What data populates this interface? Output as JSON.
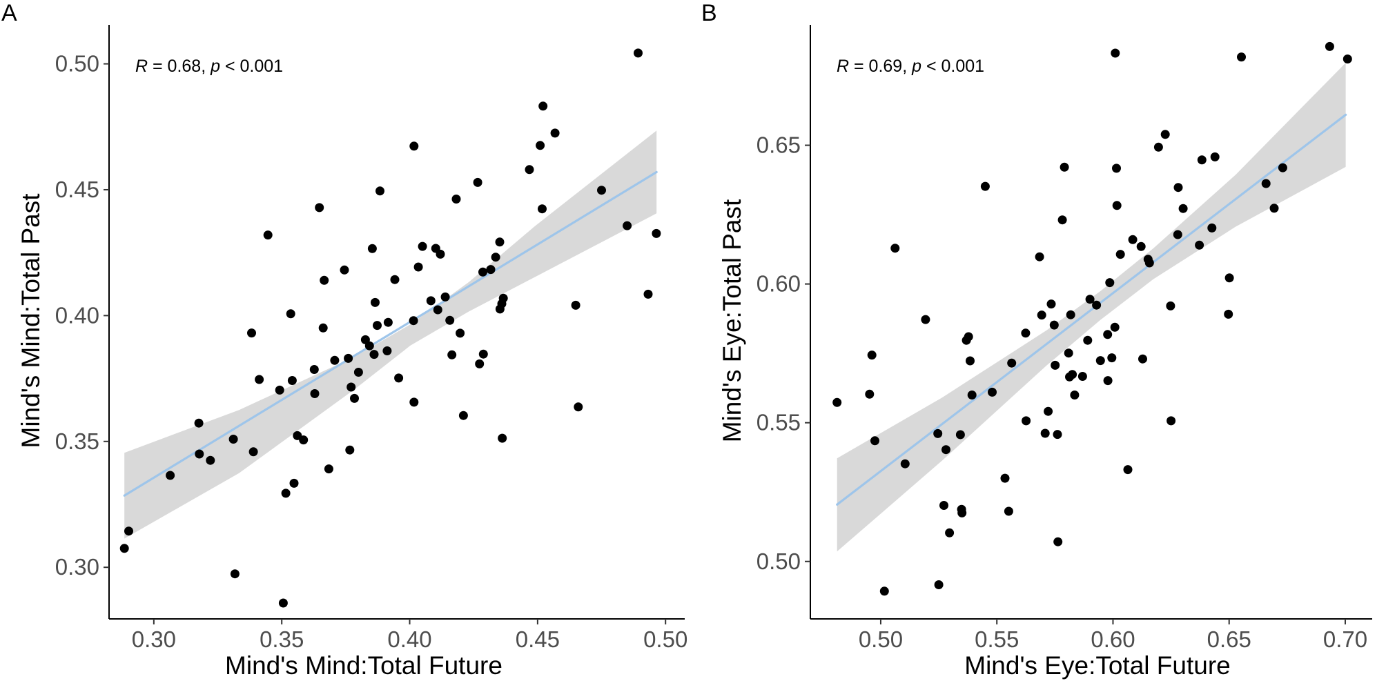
{
  "chart_data": [
    {
      "type": "scatter",
      "panel_label": "A",
      "annotation": {
        "r_label": "R",
        "r_text": " = 0.68, ",
        "p_label": "p",
        "p_text": " < 0.001"
      },
      "xlabel": "Mind's Mind:Total Future",
      "ylabel": "Mind's Mind:Total Past",
      "xlim": [
        0.2825,
        0.5075
      ],
      "ylim": [
        0.2795,
        0.5155
      ],
      "xticks": [
        {
          "v": 0.3,
          "label": "0.30"
        },
        {
          "v": 0.35,
          "label": "0.35"
        },
        {
          "v": 0.4,
          "label": "0.40"
        },
        {
          "v": 0.45,
          "label": "0.45"
        },
        {
          "v": 0.5,
          "label": "0.50"
        }
      ],
      "yticks": [
        {
          "v": 0.3,
          "label": "0.30"
        },
        {
          "v": 0.35,
          "label": "0.35"
        },
        {
          "v": 0.4,
          "label": "0.40"
        },
        {
          "v": 0.45,
          "label": "0.45"
        },
        {
          "v": 0.5,
          "label": "0.50"
        }
      ],
      "fit": {
        "x0": 0.2885,
        "y0": 0.3285,
        "x1": 0.4965,
        "y1": 0.457,
        "color": "#9ec5ea"
      },
      "ci_band": {
        "upper": [
          [
            0.2885,
            0.3455
          ],
          [
            0.3333,
            0.3625
          ],
          [
            0.3782,
            0.3835
          ],
          [
            0.4003,
            0.3965
          ],
          [
            0.4231,
            0.4133
          ],
          [
            0.4489,
            0.4355
          ],
          [
            0.4965,
            0.4735
          ]
        ],
        "lower": [
          [
            0.2885,
            0.3114
          ],
          [
            0.3333,
            0.3374
          ],
          [
            0.3782,
            0.3705
          ],
          [
            0.4003,
            0.3881
          ],
          [
            0.4231,
            0.4016
          ],
          [
            0.4489,
            0.4153
          ],
          [
            0.4965,
            0.4406
          ]
        ],
        "color": "#d9d9d9"
      },
      "x": [
        0.2885,
        0.2902,
        0.3064,
        0.3176,
        0.3178,
        0.3221,
        0.3311,
        0.3317,
        0.3382,
        0.3389,
        0.3412,
        0.3446,
        0.3492,
        0.3506,
        0.3516,
        0.3535,
        0.3541,
        0.3548,
        0.3561,
        0.3585,
        0.3627,
        0.3629,
        0.3647,
        0.3662,
        0.3666,
        0.3684,
        0.3707,
        0.3745,
        0.376,
        0.3766,
        0.3771,
        0.3784,
        0.38,
        0.3827,
        0.3843,
        0.3854,
        0.3861,
        0.3865,
        0.3873,
        0.3884,
        0.3912,
        0.3916,
        0.3942,
        0.3957,
        0.4015,
        0.4017,
        0.4017,
        0.4034,
        0.405,
        0.4083,
        0.4102,
        0.411,
        0.412,
        0.4139,
        0.4157,
        0.4165,
        0.4182,
        0.4197,
        0.421,
        0.4266,
        0.4273,
        0.4288,
        0.4286,
        0.4317,
        0.4336,
        0.4352,
        0.4353,
        0.436,
        0.4362,
        0.4366,
        0.4468,
        0.451,
        0.4518,
        0.4521,
        0.4568,
        0.4649,
        0.4659,
        0.475,
        0.485,
        0.4893,
        0.4932,
        0.4964
      ],
      "y": [
        0.3075,
        0.3144,
        0.3365,
        0.3573,
        0.345,
        0.3425,
        0.3509,
        0.2974,
        0.3931,
        0.3459,
        0.3746,
        0.432,
        0.3704,
        0.2858,
        0.3294,
        0.4007,
        0.3742,
        0.3334,
        0.3523,
        0.3506,
        0.3786,
        0.369,
        0.4429,
        0.3951,
        0.414,
        0.3391,
        0.3822,
        0.4181,
        0.383,
        0.3466,
        0.3716,
        0.3671,
        0.3775,
        0.3904,
        0.388,
        0.4266,
        0.3846,
        0.4052,
        0.3961,
        0.4495,
        0.386,
        0.3973,
        0.4143,
        0.3752,
        0.398,
        0.4673,
        0.3656,
        0.4193,
        0.4275,
        0.4059,
        0.4267,
        0.4023,
        0.4244,
        0.4074,
        0.3981,
        0.3844,
        0.4463,
        0.393,
        0.3603,
        0.4529,
        0.3808,
        0.3847,
        0.4173,
        0.4183,
        0.4232,
        0.4292,
        0.4026,
        0.4047,
        0.3513,
        0.4069,
        0.458,
        0.4676,
        0.4424,
        0.4832,
        0.4725,
        0.4041,
        0.3637,
        0.4498,
        0.4357,
        0.5043,
        0.4085,
        0.4326
      ],
      "point_color": "#000000"
    },
    {
      "type": "scatter",
      "panel_label": "B",
      "annotation": {
        "r_label": "R",
        "r_text": " = 0.69, ",
        "p_label": "p",
        "p_text": " < 0.001"
      },
      "xlabel": "Mind's Eye:Total Future",
      "ylabel": "Mind's Eye:Total Past",
      "xlim": [
        0.4697,
        0.7116
      ],
      "ylim": [
        0.4793,
        0.6934
      ],
      "xticks": [
        {
          "v": 0.5,
          "label": "0.50"
        },
        {
          "v": 0.55,
          "label": "0.55"
        },
        {
          "v": 0.6,
          "label": "0.60"
        },
        {
          "v": 0.65,
          "label": "0.65"
        },
        {
          "v": 0.7,
          "label": "0.70"
        }
      ],
      "yticks": [
        {
          "v": 0.5,
          "label": "0.50"
        },
        {
          "v": 0.55,
          "label": "0.55"
        },
        {
          "v": 0.6,
          "label": "0.60"
        },
        {
          "v": 0.65,
          "label": "0.65"
        }
      ],
      "fit": {
        "x0": 0.4812,
        "y0": 0.5205,
        "x1": 0.7002,
        "y1": 0.661,
        "color": "#9ec5ea"
      },
      "ci_band": {
        "upper": [
          [
            0.4812,
            0.5372
          ],
          [
            0.5265,
            0.5591
          ],
          [
            0.5714,
            0.5833
          ],
          [
            0.5945,
            0.5974
          ],
          [
            0.6173,
            0.6128
          ],
          [
            0.6527,
            0.6393
          ],
          [
            0.7002,
            0.6797
          ]
        ],
        "lower": [
          [
            0.4812,
            0.5036
          ],
          [
            0.5265,
            0.5364
          ],
          [
            0.5714,
            0.5706
          ],
          [
            0.5945,
            0.587
          ],
          [
            0.6173,
            0.6017
          ],
          [
            0.6527,
            0.6206
          ],
          [
            0.7002,
            0.6422
          ]
        ],
        "color": "#d9d9d9"
      },
      "x": [
        0.4812,
        0.4952,
        0.4962,
        0.4975,
        0.5016,
        0.5062,
        0.5105,
        0.5193,
        0.5246,
        0.525,
        0.5272,
        0.5281,
        0.5296,
        0.5343,
        0.5348,
        0.535,
        0.5369,
        0.5378,
        0.5385,
        0.5393,
        0.545,
        0.548,
        0.5535,
        0.5551,
        0.5564,
        0.5624,
        0.5626,
        0.5684,
        0.5693,
        0.5708,
        0.5721,
        0.5734,
        0.5747,
        0.5751,
        0.5761,
        0.5763,
        0.5782,
        0.5791,
        0.5809,
        0.5813,
        0.5818,
        0.5825,
        0.5835,
        0.5869,
        0.5891,
        0.5901,
        0.5929,
        0.5946,
        0.5977,
        0.5978,
        0.5986,
        0.5995,
        0.6008,
        0.601,
        0.6015,
        0.6017,
        0.6032,
        0.6064,
        0.6085,
        0.6121,
        0.6128,
        0.6151,
        0.6157,
        0.6196,
        0.6225,
        0.6248,
        0.625,
        0.6279,
        0.6281,
        0.6302,
        0.6372,
        0.6383,
        0.6426,
        0.6439,
        0.6497,
        0.6501,
        0.6553,
        0.6659,
        0.6694,
        0.6731,
        0.6933,
        0.701
      ],
      "y": [
        0.5573,
        0.5603,
        0.5744,
        0.5435,
        0.4893,
        0.6129,
        0.5352,
        0.5872,
        0.5461,
        0.4916,
        0.5202,
        0.5403,
        0.5103,
        0.5457,
        0.5188,
        0.5175,
        0.5797,
        0.581,
        0.5723,
        0.56,
        0.6352,
        0.561,
        0.53,
        0.5181,
        0.5715,
        0.5823,
        0.5507,
        0.6098,
        0.5888,
        0.5462,
        0.5541,
        0.5928,
        0.5852,
        0.5707,
        0.5458,
        0.5071,
        0.6231,
        0.6421,
        0.5751,
        0.5665,
        0.5889,
        0.5674,
        0.56,
        0.5667,
        0.5797,
        0.5945,
        0.5924,
        0.5724,
        0.5818,
        0.5652,
        0.6005,
        0.5734,
        0.5844,
        0.6832,
        0.6417,
        0.6283,
        0.6107,
        0.5331,
        0.616,
        0.6135,
        0.573,
        0.6089,
        0.6076,
        0.6493,
        0.6539,
        0.5921,
        0.5507,
        0.6178,
        0.6348,
        0.6272,
        0.614,
        0.6447,
        0.6202,
        0.6458,
        0.5891,
        0.6022,
        0.6818,
        0.6362,
        0.6273,
        0.6419,
        0.6856,
        0.6811
      ],
      "point_color": "#000000"
    }
  ]
}
